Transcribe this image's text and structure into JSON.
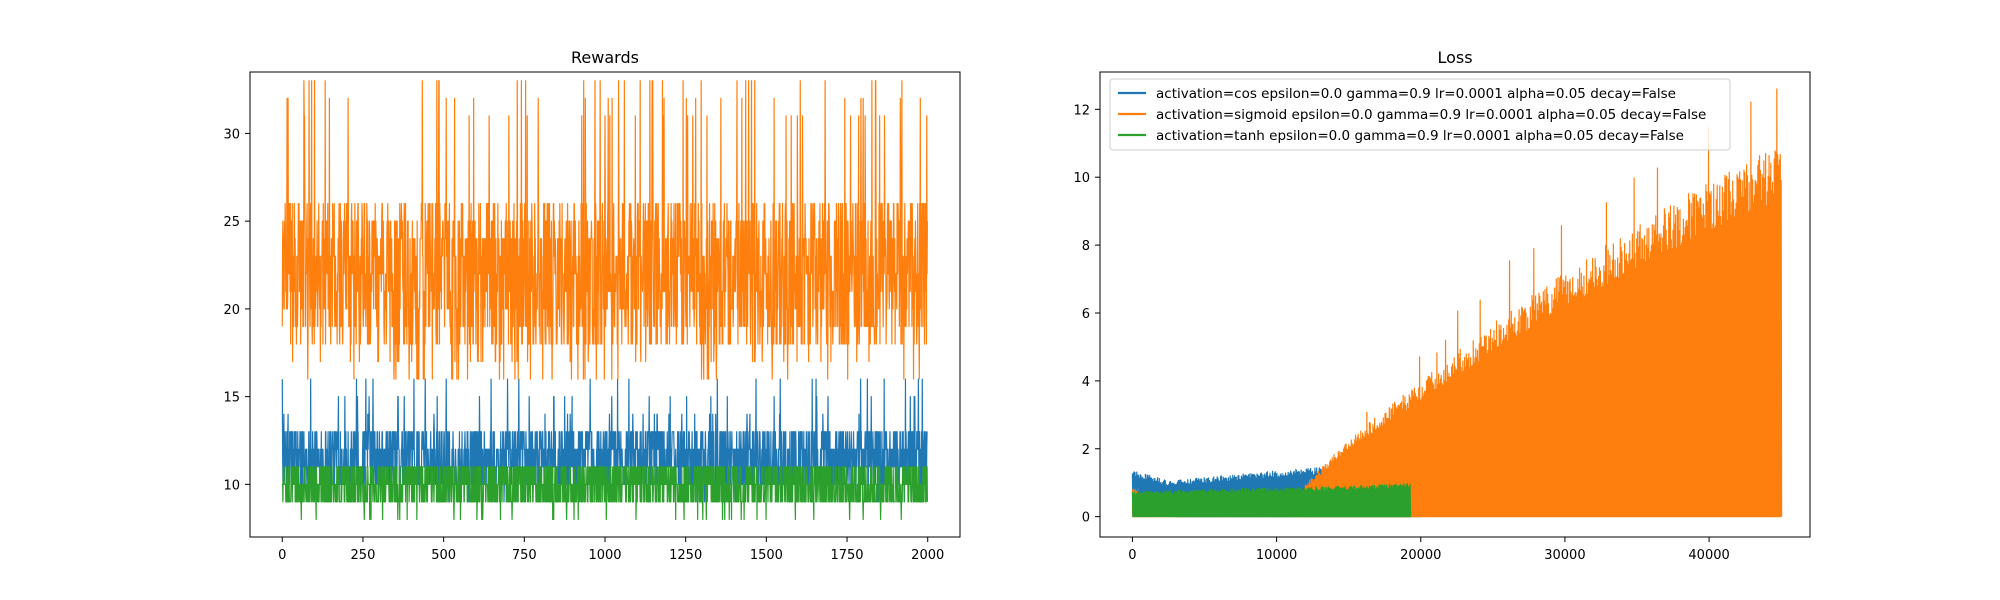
{
  "chart_data": [
    {
      "type": "line",
      "title": "Rewards",
      "xlabel": "",
      "ylabel": "",
      "xlim": [
        -100,
        2100
      ],
      "ylim": [
        7,
        33.5
      ],
      "x_ticks": [
        0,
        250,
        500,
        750,
        1000,
        1250,
        1500,
        1750,
        2000
      ],
      "x_tick_labels": [
        "0",
        "250",
        "500",
        "750",
        "1000",
        "1250",
        "1500",
        "1750",
        "2000"
      ],
      "y_ticks": [
        10,
        15,
        20,
        25,
        30
      ],
      "y_tick_labels": [
        "10",
        "15",
        "20",
        "25",
        "30"
      ],
      "grid": false,
      "legend": false,
      "n_points": 2000,
      "series": [
        {
          "color": "#1f77b4",
          "min": 9,
          "typical_low": 10,
          "typical_high": 13,
          "max": 16
        },
        {
          "color": "#ff7f0e",
          "min": 16,
          "typical_low": 18,
          "typical_high": 26,
          "max": 33
        },
        {
          "color": "#2ca02c",
          "min": 8,
          "typical_low": 9,
          "typical_high": 11,
          "max": 11
        }
      ]
    },
    {
      "type": "line",
      "title": "Loss",
      "xlabel": "",
      "ylabel": "",
      "xlim": [
        -2250,
        47000
      ],
      "ylim": [
        -0.6,
        13.1
      ],
      "x_ticks": [
        0,
        10000,
        20000,
        30000,
        40000
      ],
      "x_tick_labels": [
        "0",
        "10000",
        "20000",
        "30000",
        "40000"
      ],
      "y_ticks": [
        0,
        2,
        4,
        6,
        8,
        10,
        12
      ],
      "y_tick_labels": [
        "0",
        "2",
        "4",
        "6",
        "8",
        "10",
        "12"
      ],
      "grid": false,
      "legend": "top-left",
      "series": [
        {
          "name": "activation=cos epsilon=0.0 gamma=0.9 lr=0.0001 alpha=0.05 decay=False",
          "color": "#1f77b4",
          "x_end": 20000,
          "upper_envelope": [
            [
              0,
              1.4
            ],
            [
              1000,
              1.25
            ],
            [
              2500,
              1.05
            ],
            [
              5000,
              1.15
            ],
            [
              10000,
              1.35
            ],
            [
              15000,
              1.5
            ],
            [
              20000,
              1.6
            ]
          ]
        },
        {
          "name": "activation=sigmoid epsilon=0.0 gamma=0.9 lr=0.0001 alpha=0.05 decay=False",
          "color": "#ff7f0e",
          "x_end": 45000,
          "upper_envelope": [
            [
              0,
              0.9
            ],
            [
              1000,
              0.6
            ],
            [
              3000,
              0.2
            ],
            [
              8000,
              0.2
            ],
            [
              11000,
              0.5
            ],
            [
              15000,
              2.3
            ],
            [
              20000,
              4.0
            ],
            [
              25000,
              5.7
            ],
            [
              30000,
              7.2
            ],
            [
              35000,
              8.6
            ],
            [
              40000,
              9.9
            ],
            [
              45000,
              11.0
            ]
          ],
          "max_spike": 12.6
        },
        {
          "name": "activation=tanh epsilon=0.0 gamma=0.9 lr=0.0001 alpha=0.05 decay=False",
          "color": "#2ca02c",
          "x_end": 19300,
          "upper_envelope": [
            [
              0,
              0.75
            ],
            [
              5000,
              0.8
            ],
            [
              10000,
              0.85
            ],
            [
              15000,
              0.9
            ],
            [
              19300,
              1.0
            ]
          ]
        }
      ]
    }
  ]
}
